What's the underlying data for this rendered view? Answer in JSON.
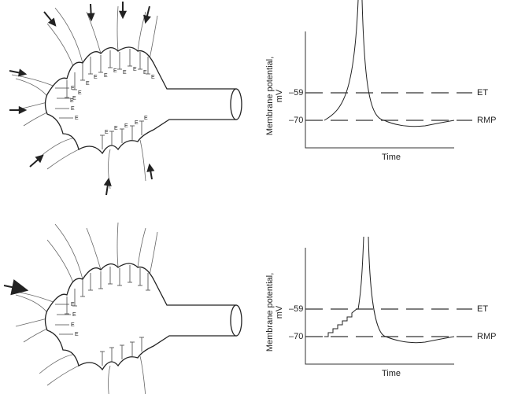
{
  "panels": [
    {
      "terminal_label": "E",
      "graph": {
        "y_label_lines": [
          "Membrane potential,",
          "mV"
        ],
        "levels": [
          {
            "tick": "–59",
            "label": "ET"
          },
          {
            "tick": "–70",
            "label": "RMP"
          }
        ],
        "x_label": "Time"
      }
    },
    {
      "terminal_label": "E",
      "graph": {
        "y_label_lines": [
          "Membrane potential,",
          "mV"
        ],
        "levels": [
          {
            "tick": "–59",
            "label": "ET"
          },
          {
            "tick": "–70",
            "label": "RMP"
          }
        ],
        "x_label": "Time"
      }
    }
  ]
}
